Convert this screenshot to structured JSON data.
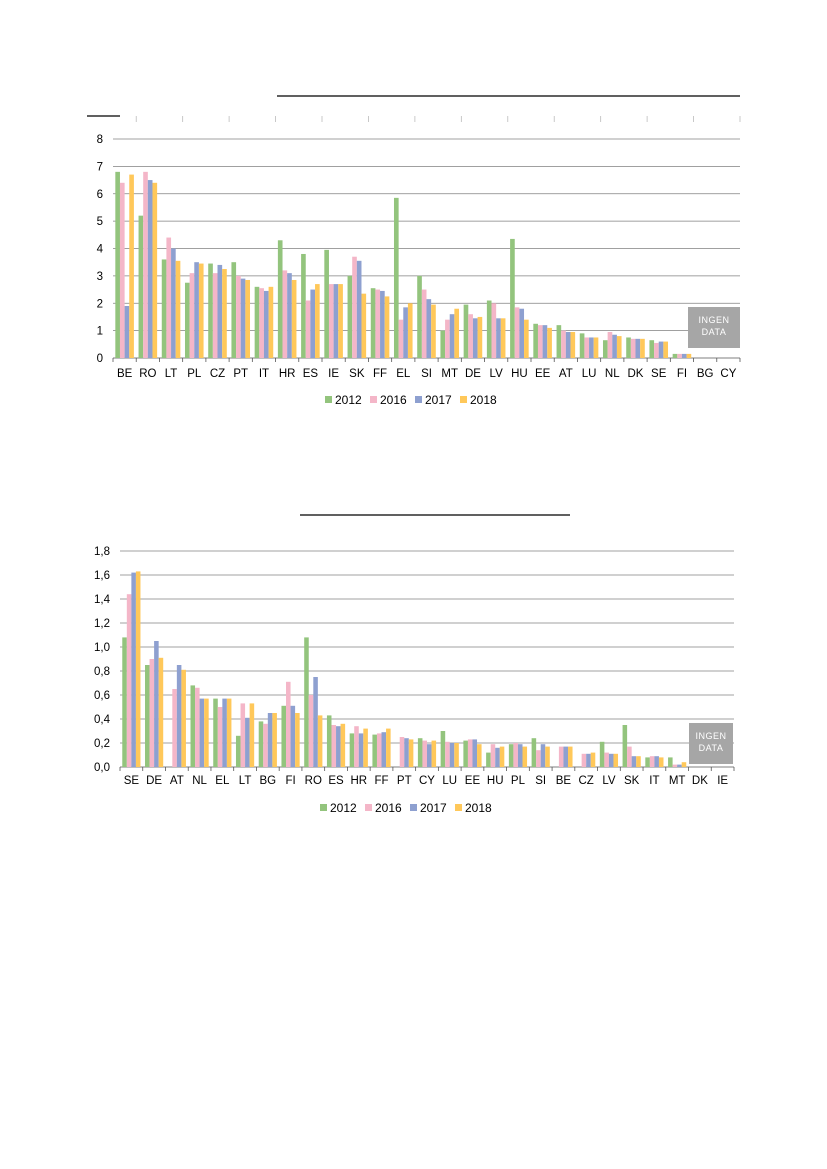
{
  "colors": {
    "2012": "#93c47d",
    "2016": "#f4b6c8",
    "2017": "#8ea0d0",
    "2018": "#ffc85a",
    "gridline": "#808080",
    "nodata_box": "#a6a6a6"
  },
  "chart_data": [
    {
      "type": "bar",
      "title": "",
      "xlabel": "",
      "ylabel": "",
      "ylim": [
        0,
        8
      ],
      "yticks": [
        "0",
        "1",
        "2",
        "3",
        "4",
        "5",
        "6",
        "7",
        "8"
      ],
      "grid": true,
      "legend": "bottom-center",
      "categories": [
        "BE",
        "RO",
        "LT",
        "PL",
        "CZ",
        "PT",
        "IT",
        "HR",
        "ES",
        "IE",
        "SK",
        "FF",
        "EL",
        "SI",
        "MT",
        "DE",
        "LV",
        "HU",
        "EE",
        "AT",
        "LU",
        "NL",
        "DK",
        "SE",
        "FI",
        "BG",
        "CY"
      ],
      "series": [
        {
          "name": "2012",
          "values": [
            6.8,
            5.2,
            3.6,
            2.75,
            3.45,
            3.5,
            2.6,
            4.3,
            3.8,
            3.95,
            3.0,
            2.55,
            5.85,
            3.0,
            1.0,
            1.95,
            2.1,
            4.35,
            1.25,
            1.2,
            0.9,
            0.65,
            0.75,
            0.65,
            0.15,
            null,
            null
          ]
        },
        {
          "name": "2016",
          "values": [
            6.4,
            6.8,
            4.4,
            3.1,
            3.1,
            3.0,
            2.55,
            3.2,
            2.1,
            2.7,
            3.7,
            2.5,
            1.4,
            2.5,
            1.4,
            1.6,
            2.0,
            1.85,
            1.2,
            1.0,
            0.75,
            0.95,
            0.7,
            0.55,
            0.15,
            null,
            null
          ]
        },
        {
          "name": "2017",
          "values": [
            1.9,
            6.5,
            4.0,
            3.5,
            3.4,
            2.9,
            2.45,
            3.1,
            2.5,
            2.7,
            3.55,
            2.45,
            1.85,
            2.15,
            1.6,
            1.45,
            1.45,
            1.8,
            1.2,
            0.95,
            0.75,
            0.85,
            0.7,
            0.6,
            0.15,
            null,
            null
          ]
        },
        {
          "name": "2018",
          "values": [
            6.7,
            6.4,
            3.55,
            3.45,
            3.25,
            2.85,
            2.6,
            2.85,
            2.7,
            2.7,
            2.35,
            2.25,
            2.0,
            1.95,
            1.8,
            1.5,
            1.45,
            1.4,
            1.1,
            0.95,
            0.75,
            0.8,
            0.7,
            0.6,
            0.15,
            null,
            null
          ]
        }
      ],
      "nodata_label": [
        "INGEN",
        "DATA"
      ]
    },
    {
      "type": "bar",
      "title": "",
      "xlabel": "",
      "ylabel": "",
      "ylim": [
        0,
        1.8
      ],
      "yticks": [
        "0,0",
        "0,2",
        "0,4",
        "0,6",
        "0,8",
        "1,0",
        "1,2",
        "1,4",
        "1,6",
        "1,8"
      ],
      "grid": true,
      "legend": "bottom-center",
      "categories": [
        "SE",
        "DE",
        "AT",
        "NL",
        "EL",
        "LT",
        "BG",
        "FI",
        "RO",
        "ES",
        "HR",
        "FF",
        "PT",
        "CY",
        "LU",
        "EE",
        "HU",
        "PL",
        "SI",
        "BE",
        "CZ",
        "LV",
        "SK",
        "IT",
        "MT",
        "DK",
        "IE"
      ],
      "series": [
        {
          "name": "2012",
          "values": [
            1.08,
            0.85,
            null,
            0.68,
            0.57,
            0.26,
            0.38,
            0.51,
            1.08,
            0.43,
            0.28,
            0.27,
            null,
            0.24,
            0.3,
            0.22,
            0.12,
            0.19,
            0.24,
            null,
            null,
            0.21,
            0.35,
            0.08,
            0.08,
            null,
            null
          ]
        },
        {
          "name": "2016",
          "values": [
            1.44,
            0.9,
            0.65,
            0.66,
            0.5,
            0.53,
            0.36,
            0.71,
            0.6,
            0.35,
            0.34,
            0.28,
            0.25,
            0.22,
            0.21,
            0.23,
            0.19,
            0.2,
            0.14,
            0.17,
            0.11,
            0.12,
            0.17,
            0.09,
            0.02,
            null,
            null
          ]
        },
        {
          "name": "2017",
          "values": [
            1.62,
            1.05,
            0.85,
            0.57,
            0.57,
            0.41,
            0.45,
            0.51,
            0.75,
            0.34,
            0.28,
            0.29,
            0.24,
            0.19,
            0.2,
            0.23,
            0.16,
            0.19,
            0.19,
            0.17,
            0.11,
            0.11,
            0.09,
            0.09,
            0.02,
            null,
            null
          ]
        },
        {
          "name": "2018",
          "values": [
            1.63,
            0.91,
            0.81,
            0.57,
            0.57,
            0.53,
            0.45,
            0.45,
            0.43,
            0.36,
            0.32,
            0.32,
            0.23,
            0.22,
            0.2,
            0.19,
            0.17,
            0.17,
            0.17,
            0.17,
            0.12,
            0.11,
            0.09,
            0.08,
            0.04,
            null,
            null
          ]
        }
      ],
      "nodata_label": [
        "INGEN",
        "DATA"
      ]
    }
  ]
}
